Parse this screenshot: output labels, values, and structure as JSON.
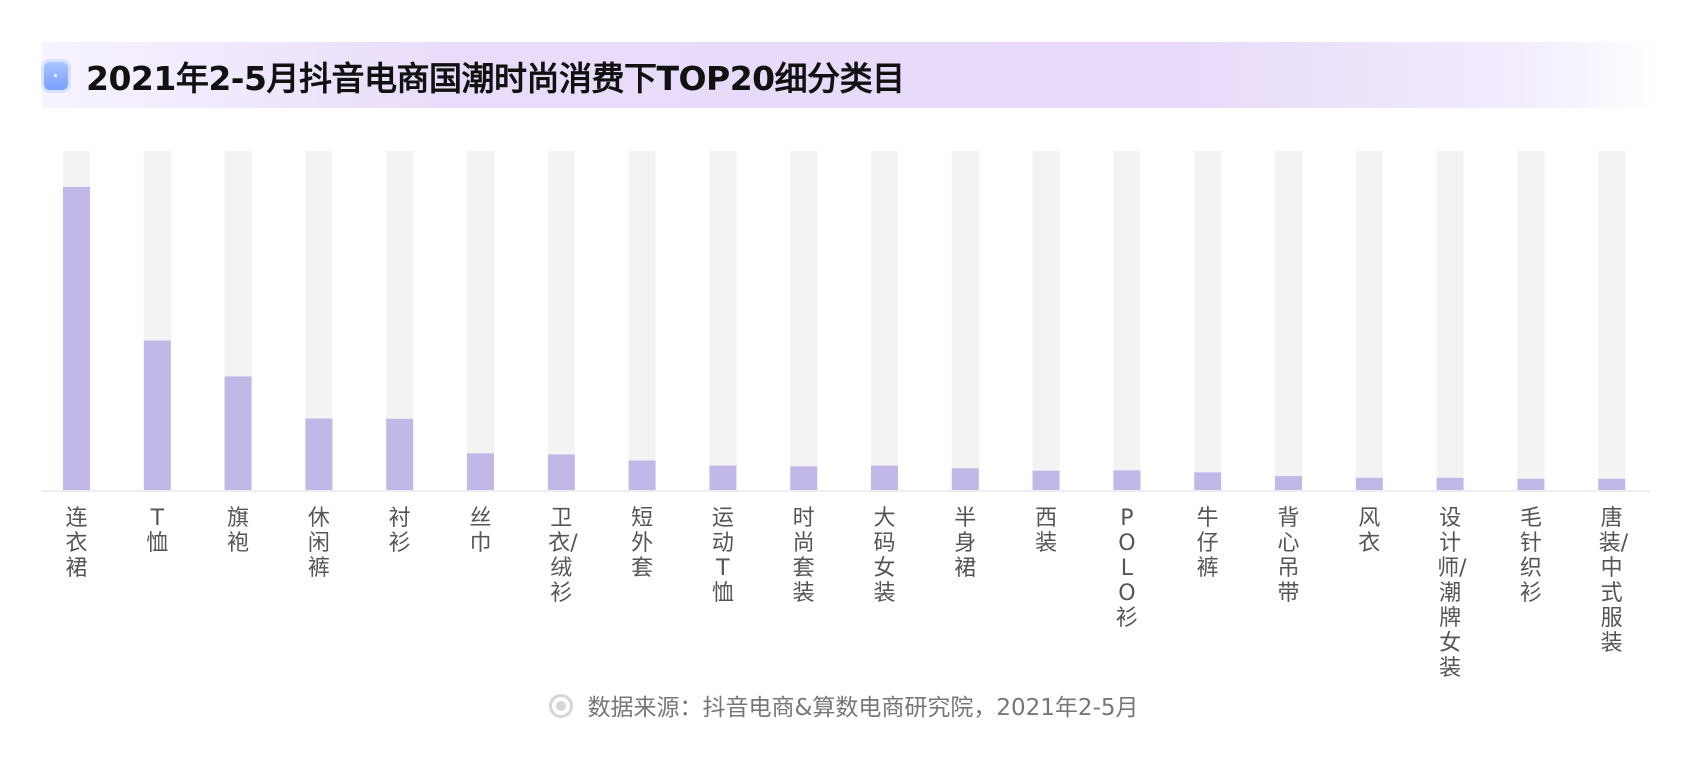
{
  "title": "2021年2-5月抖音电商国潮时尚消费下TOP20细分类目",
  "source": "数据来源：抖音电商&算数电商研究院，2021年2-5月",
  "colors": {
    "bar": "#c2b8e8",
    "track": "#f2f3f3",
    "title_band": "#e8dbfa",
    "title_icon": "#8aaaff"
  },
  "icons": {
    "title": "rounded-square-icon",
    "source": "concentric-circle-icon"
  },
  "chart_data": {
    "type": "bar",
    "title": "2021年2-5月抖音电商国潮时尚消费下TOP20细分类目",
    "xlabel": "",
    "ylabel": "",
    "ylim": [
      0,
      1
    ],
    "grid": false,
    "legend": "none",
    "categories": [
      "连衣裙",
      "T恤",
      "旗袍",
      "休闲裤",
      "衬衫",
      "丝巾",
      "卫衣/绒衫",
      "短外套",
      "运动T恤",
      "时尚套装",
      "大码女装",
      "半身裙",
      "西装",
      "POLO衫",
      "牛仔裤",
      "背心吊带",
      "风衣",
      "设计师/潮牌女装",
      "毛针织衫",
      "唐装/中式服装"
    ],
    "values": [
      0.894,
      0.441,
      0.335,
      0.211,
      0.21,
      0.108,
      0.105,
      0.087,
      0.072,
      0.07,
      0.072,
      0.064,
      0.057,
      0.058,
      0.052,
      0.041,
      0.036,
      0.036,
      0.033,
      0.033
    ]
  }
}
